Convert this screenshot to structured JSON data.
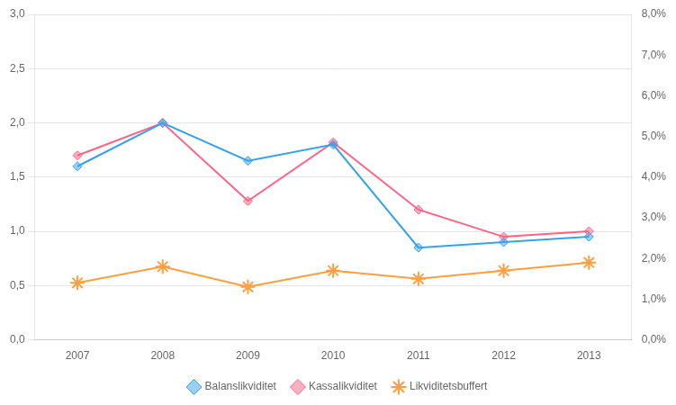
{
  "chart_data": {
    "type": "line",
    "x": [
      2007,
      2008,
      2009,
      2010,
      2011,
      2012,
      2013
    ],
    "series": [
      {
        "name": "Balanslikviditet",
        "values": [
          1.6,
          2.0,
          1.65,
          1.8,
          0.85,
          0.9,
          0.95
        ],
        "marker": "diamond"
      },
      {
        "name": "Kassalikviditet",
        "values": [
          1.7,
          2.0,
          1.28,
          1.82,
          1.2,
          0.95,
          1.0
        ],
        "marker": "diamond"
      },
      {
        "name": "Likviditetsbuffert",
        "values": [
          0.014,
          0.018,
          0.013,
          0.017,
          0.015,
          0.017,
          0.019
        ],
        "marker": "star",
        "axis": "y2"
      }
    ],
    "xlim": [
      2006.5,
      2013.5
    ],
    "xticks": [
      2007,
      2008,
      2009,
      2010,
      2011,
      2012,
      2013
    ],
    "ylim": [
      0.0,
      3.0
    ],
    "yticks": [
      {
        "value": 0.0,
        "label": "0,0"
      },
      {
        "value": 0.5,
        "label": "0,5"
      },
      {
        "value": 1.0,
        "label": "1,0"
      },
      {
        "value": 1.5,
        "label": "1,5"
      },
      {
        "value": 2.0,
        "label": "2,0"
      },
      {
        "value": 2.5,
        "label": "2,5"
      },
      {
        "value": 3.0,
        "label": "3,0"
      }
    ],
    "y2lim": [
      0.0,
      0.08
    ],
    "y2ticks": [
      {
        "value": 0.0,
        "label": "0,0%"
      },
      {
        "value": 0.01,
        "label": "1,0%"
      },
      {
        "value": 0.02,
        "label": "2,0%"
      },
      {
        "value": 0.03,
        "label": "3,0%"
      },
      {
        "value": 0.04,
        "label": "4,0%"
      },
      {
        "value": 0.05,
        "label": "5,0%"
      },
      {
        "value": 0.06,
        "label": "6,0%"
      },
      {
        "value": 0.07,
        "label": "7,0%"
      },
      {
        "value": 0.08,
        "label": "8,0%"
      }
    ],
    "grid": "y",
    "legend": "bottom"
  }
}
